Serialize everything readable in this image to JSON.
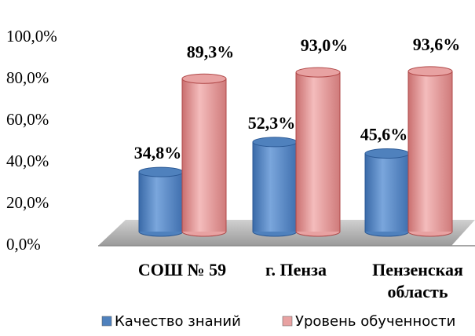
{
  "chart_data": {
    "type": "bar",
    "categories": [
      "СОШ № 59",
      "г. Пенза",
      "Пензенская область"
    ],
    "series": [
      {
        "name": "Качество знаний",
        "color": "#4f81bd",
        "values": [
          34.8,
          52.3,
          45.6
        ],
        "value_labels": [
          "34,8%",
          "52,3%",
          "45,6%"
        ]
      },
      {
        "name": "Уровень обученности",
        "color": "#e8a2a2",
        "values": [
          89.3,
          93.0,
          93.6
        ],
        "value_labels": [
          "89,3%",
          "93,0%",
          "93,6%"
        ]
      }
    ],
    "ylim": [
      0,
      100
    ],
    "yticks": [
      {
        "value": 0,
        "label": "0,0%"
      },
      {
        "value": 20,
        "label": "20,0%"
      },
      {
        "value": 40,
        "label": "40,0%"
      },
      {
        "value": 60,
        "label": "60,0%"
      },
      {
        "value": 80,
        "label": "80,0%"
      },
      {
        "value": 100,
        "label": "100,0%"
      }
    ],
    "legend": "bottom"
  }
}
